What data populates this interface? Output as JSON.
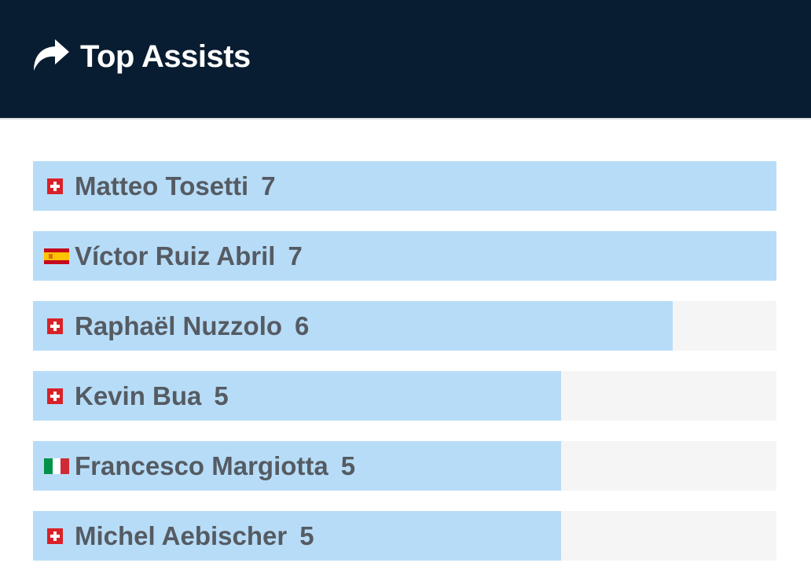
{
  "header": {
    "title": "Top Assists",
    "icon": "share-arrow-icon",
    "background": "#091d32"
  },
  "list": {
    "bar_color": "#b7dcf7",
    "track_color": "#f5f5f5",
    "items": [
      {
        "name": "Matteo Tosetti",
        "value": "7",
        "fill": 1.0,
        "flag": "switzerland-flag-icon"
      },
      {
        "name": "Víctor Ruiz Abril",
        "value": "7",
        "fill": 1.0,
        "flag": "spain-flag-icon"
      },
      {
        "name": "Raphaël Nuzzolo",
        "value": "6",
        "fill": 0.86,
        "flag": "switzerland-flag-icon"
      },
      {
        "name": "Kevin Bua",
        "value": "5",
        "fill": 0.71,
        "flag": "switzerland-flag-icon"
      },
      {
        "name": "Francesco Margiotta",
        "value": "5",
        "fill": 0.71,
        "flag": "italy-flag-icon"
      },
      {
        "name": "Michel Aebischer",
        "value": "5",
        "fill": 0.71,
        "flag": "switzerland-flag-icon"
      }
    ]
  }
}
